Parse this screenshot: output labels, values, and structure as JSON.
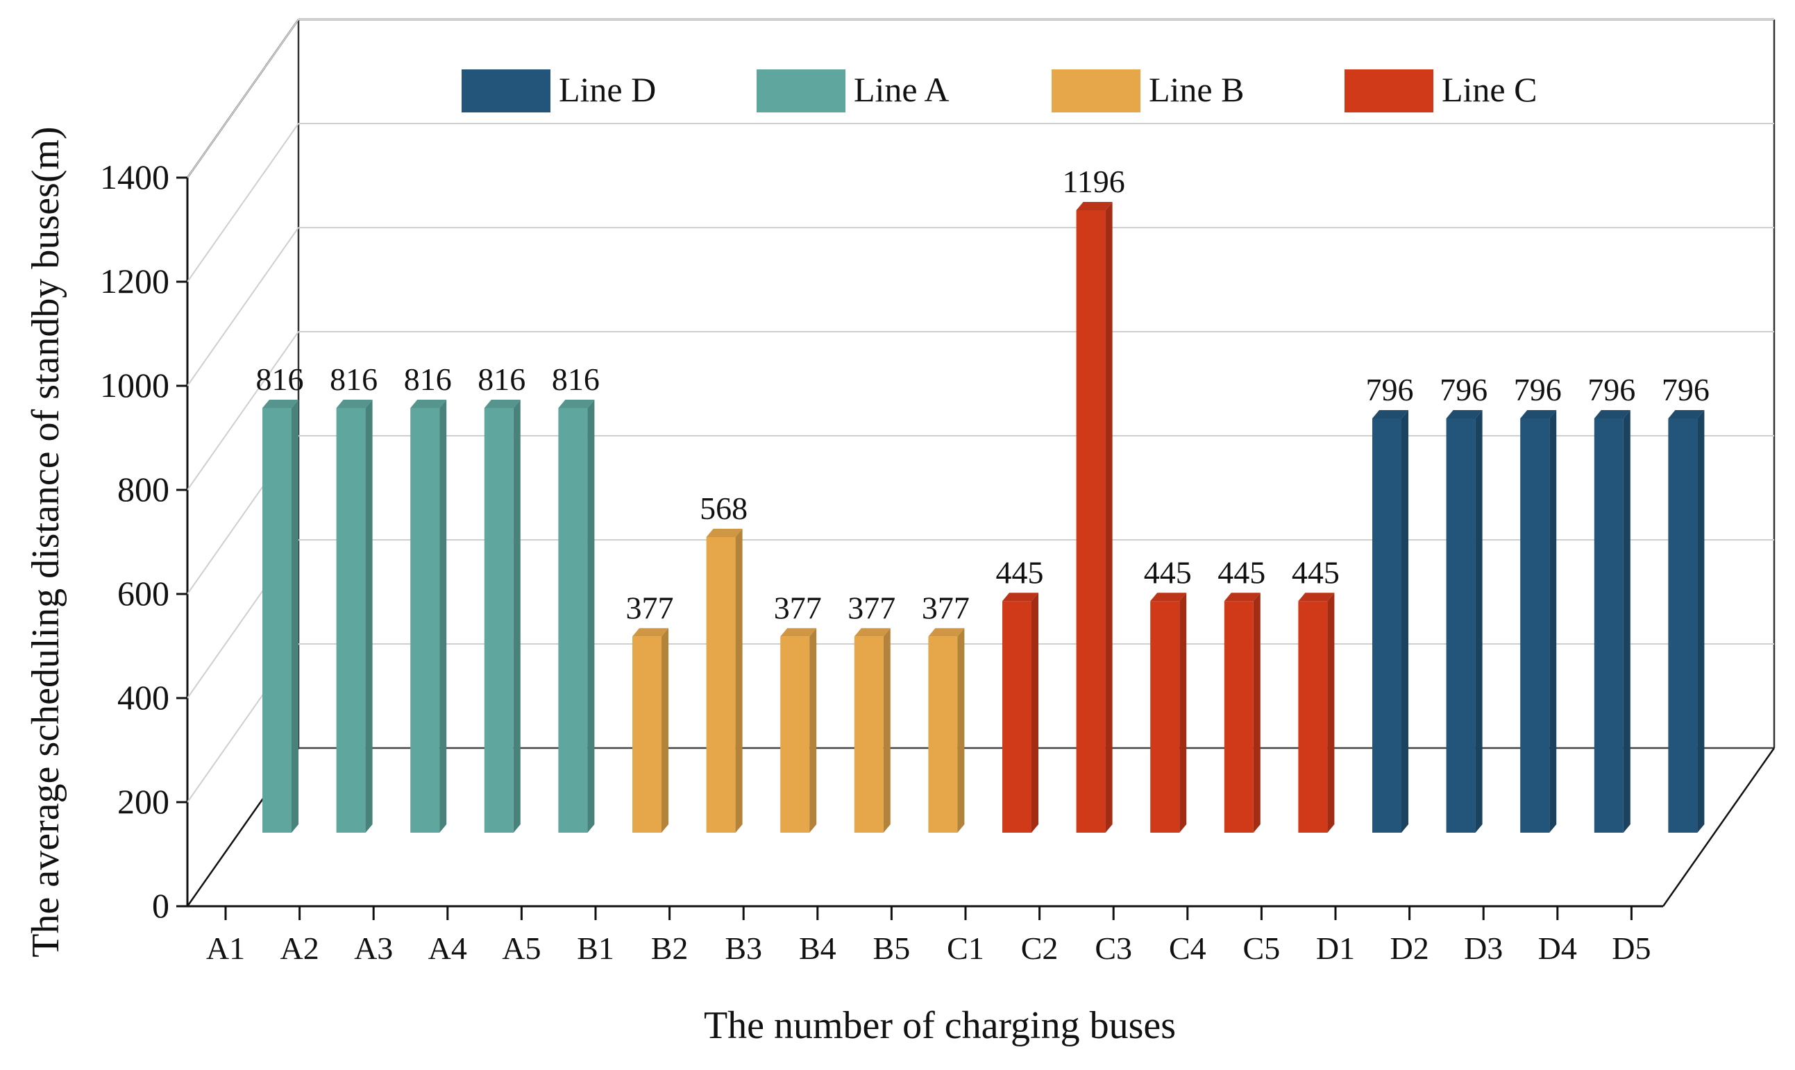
{
  "chart_data": {
    "type": "bar",
    "title": "",
    "xlabel": "The number of charging buses",
    "ylabel": "The average scheduling distance of standby buses(m)",
    "ylim": [
      0,
      1400
    ],
    "yticks": [
      "0",
      "200",
      "400",
      "600",
      "800",
      "1000",
      "1200",
      "1400"
    ],
    "grid": true,
    "legend_position": "top",
    "legend": [
      {
        "name": "Line D",
        "color": "#235479"
      },
      {
        "name": "Line A",
        "color": "#5ea69e"
      },
      {
        "name": "Line B",
        "color": "#e6a74b"
      },
      {
        "name": "Line C",
        "color": "#d13a19"
      }
    ],
    "categories": [
      "A1",
      "A2",
      "A3",
      "A4",
      "A5",
      "B1",
      "B2",
      "B3",
      "B4",
      "B5",
      "C1",
      "C2",
      "C3",
      "C4",
      "C5",
      "D1",
      "D2",
      "D3",
      "D4",
      "D5"
    ],
    "bars": [
      {
        "value": 816,
        "label": "816",
        "series": "Line A"
      },
      {
        "value": 816,
        "label": "816",
        "series": "Line A"
      },
      {
        "value": 816,
        "label": "816",
        "series": "Line A"
      },
      {
        "value": 816,
        "label": "816",
        "series": "Line A"
      },
      {
        "value": 816,
        "label": "816",
        "series": "Line A"
      },
      {
        "value": 377,
        "label": "377",
        "series": "Line B"
      },
      {
        "value": 568,
        "label": "568",
        "series": "Line B"
      },
      {
        "value": 377,
        "label": "377",
        "series": "Line B"
      },
      {
        "value": 377,
        "label": "377",
        "series": "Line B"
      },
      {
        "value": 377,
        "label": "377",
        "series": "Line B"
      },
      {
        "value": 445,
        "label": "445",
        "series": "Line C"
      },
      {
        "value": 1196,
        "label": "1196",
        "series": "Line C"
      },
      {
        "value": 445,
        "label": "445",
        "series": "Line C"
      },
      {
        "value": 445,
        "label": "445",
        "series": "Line C"
      },
      {
        "value": 445,
        "label": "445",
        "series": "Line C"
      },
      {
        "value": 796,
        "label": "796",
        "series": "Line D"
      },
      {
        "value": 796,
        "label": "796",
        "series": "Line D"
      },
      {
        "value": 796,
        "label": "796",
        "series": "Line D"
      },
      {
        "value": 796,
        "label": "796",
        "series": "Line D"
      },
      {
        "value": 796,
        "label": "796",
        "series": "Line D"
      }
    ]
  }
}
